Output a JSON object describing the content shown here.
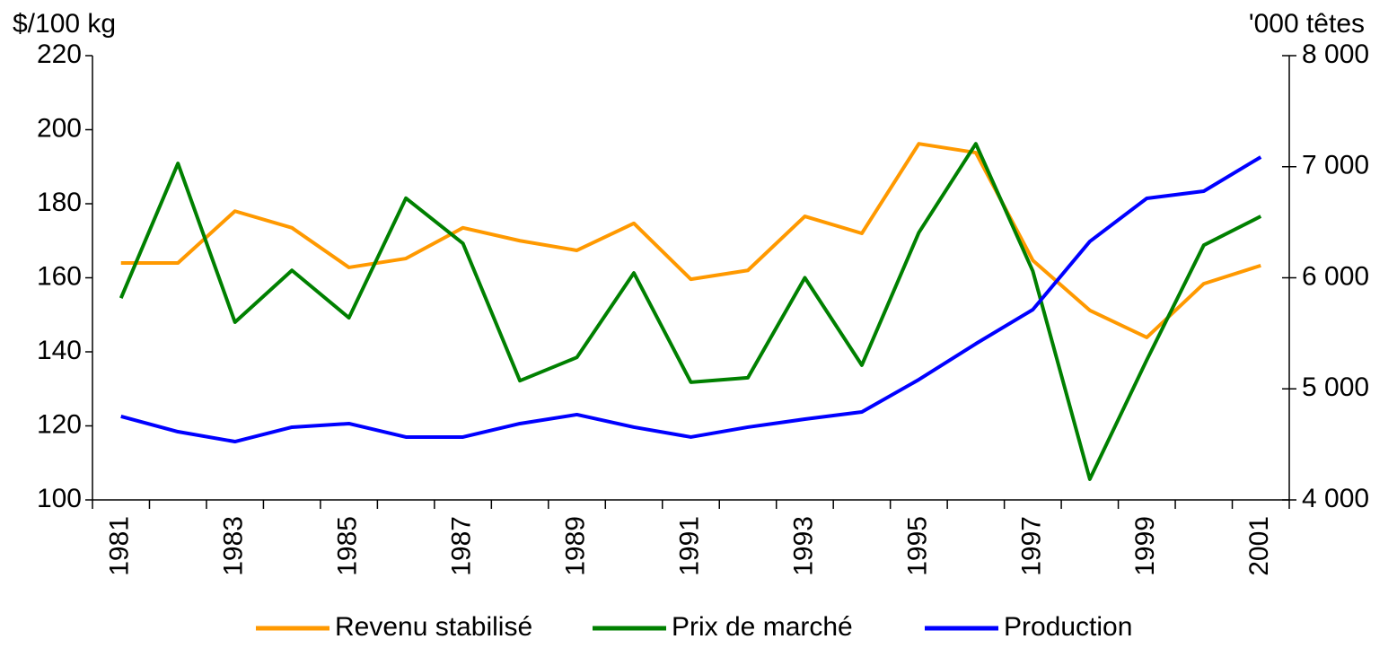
{
  "chart_data": {
    "type": "line",
    "y_label": "$/100 kg",
    "y2_label": "'000 têtes",
    "categories": [
      "1981",
      null,
      "1983",
      null,
      "1985",
      null,
      "1987",
      null,
      "1989",
      null,
      "1991",
      null,
      "1993",
      null,
      "1995",
      null,
      "1997",
      null,
      "1999",
      null,
      "2001"
    ],
    "ylim": [
      100,
      220
    ],
    "yticks": [
      100,
      120,
      140,
      160,
      180,
      200,
      220
    ],
    "y2lim": [
      4000,
      8000
    ],
    "y2ticks": [
      {
        "value": 4000,
        "label": "4 000"
      },
      {
        "value": 5000,
        "label": "5 000"
      },
      {
        "value": 6000,
        "label": "6 000"
      },
      {
        "value": 7000,
        "label": "7 000"
      },
      {
        "value": 8000,
        "label": "8 000"
      }
    ],
    "series": [
      {
        "name": "Revenu stabilisé",
        "color": "#ff9900",
        "values": [
          164,
          164,
          178,
          173.5,
          162.8,
          165.2,
          173.5,
          170,
          167.4,
          174.7,
          159.6,
          162,
          176.6,
          172,
          196.2,
          193.8,
          164.7,
          151.2,
          143.9,
          158.4,
          163.3
        ]
      },
      {
        "name": "Prix de marché",
        "color": "#008000",
        "values": [
          154.5,
          190.9,
          148,
          162,
          149.2,
          181.5,
          169.3,
          132.2,
          138.5,
          161.3,
          131.8,
          133,
          160,
          136.4,
          172.2,
          196.2,
          161.8,
          105.6,
          137.8,
          168.8,
          176.6
        ]
      },
      {
        "name": "Production",
        "color": "#0000ff",
        "axis": "y2",
        "values": [
          4752,
          4614,
          4525,
          4655,
          4687,
          4566,
          4566,
          4687,
          4768,
          4655,
          4566,
          4655,
          4727,
          4792,
          5083,
          5406,
          5713,
          6327,
          6715,
          6780,
          7087
        ]
      }
    ],
    "legend": "bottom"
  }
}
